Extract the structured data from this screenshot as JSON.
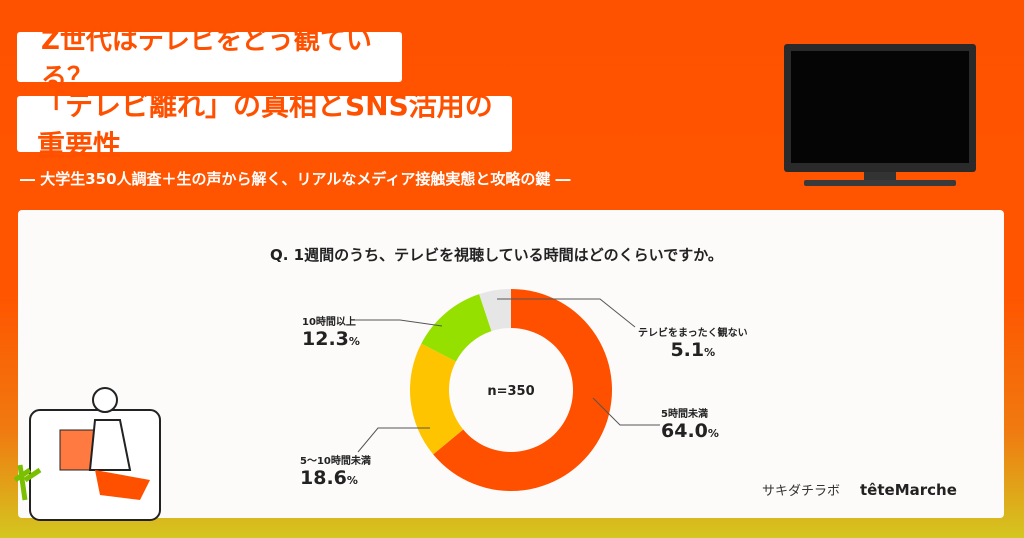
{
  "header": {
    "title1": "Z世代はテレビをどう観ている？",
    "title2": "「テレビ離れ」の真相とSNS活用の重要性",
    "subtitle": "― 大学生350人調査＋生の声から解く、リアルなメディア接触実態と攻略の鍵 ―"
  },
  "chart_data": {
    "type": "pie",
    "donut": true,
    "title": "Q. 1週間のうち、テレビを視聴している時間はどのくらいですか。",
    "center_label": "n=350",
    "categories": [
      "5時間未満",
      "5〜10時間未満",
      "10時間以上",
      "テレビをまったく観ない"
    ],
    "values": [
      64.0,
      18.6,
      12.3,
      5.1
    ],
    "unit": "%",
    "colors": [
      "#ff5000",
      "#ffc400",
      "#96e000",
      "#e6e6e6"
    ],
    "value_labels": [
      "64.0",
      "18.6",
      "12.3",
      "5.1"
    ]
  },
  "logos": {
    "logo1": "サキダチラボ",
    "logo2": "têteMarche"
  }
}
